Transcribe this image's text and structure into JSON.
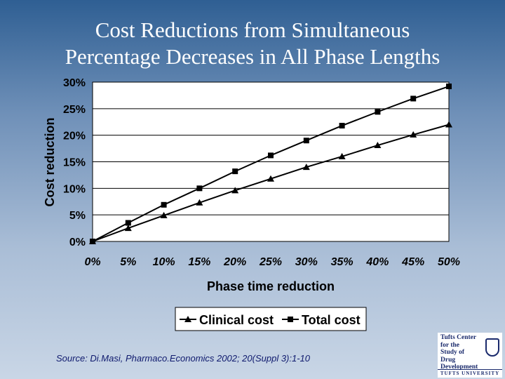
{
  "slide": {
    "title_lines": [
      "Cost Reductions from Simultaneous",
      "Percentage Decreases in All Phase Lengths"
    ],
    "source": "Source: Di.Masi, Pharmaco.Economics 2002; 20(Suppl 3):1-10"
  },
  "logo": {
    "lines": [
      "Tufts Center",
      "for the",
      "Study of",
      "Drug Development"
    ],
    "footer": "TUFTS UNIVERSITY"
  },
  "chart_data": {
    "type": "line",
    "title": "",
    "xlabel": "Phase time reduction",
    "ylabel": "Cost reduction",
    "x": [
      0,
      5,
      10,
      15,
      20,
      25,
      30,
      35,
      40,
      45,
      50
    ],
    "x_tick_labels": [
      "0%",
      "5%",
      "10%",
      "15%",
      "20%",
      "25%",
      "30%",
      "35%",
      "40%",
      "45%",
      "50%"
    ],
    "y_ticks": [
      0,
      5,
      10,
      15,
      20,
      25,
      30
    ],
    "y_tick_labels": [
      "0%",
      "5%",
      "10%",
      "15%",
      "20%",
      "25%",
      "30%"
    ],
    "xlim": [
      0,
      50
    ],
    "ylim": [
      0,
      30
    ],
    "grid": "horizontal",
    "legend_position": "bottom-center",
    "series": [
      {
        "name": "Clinical cost",
        "marker": "triangle",
        "color": "#000000",
        "values": [
          0,
          2.5,
          4.9,
          7.3,
          9.6,
          11.8,
          14.0,
          16.0,
          18.1,
          20.1,
          22.0
        ]
      },
      {
        "name": "Total cost",
        "marker": "square",
        "color": "#000000",
        "values": [
          0,
          3.5,
          6.9,
          10.0,
          13.2,
          16.2,
          19.0,
          21.8,
          24.4,
          26.9,
          29.2
        ]
      }
    ]
  }
}
